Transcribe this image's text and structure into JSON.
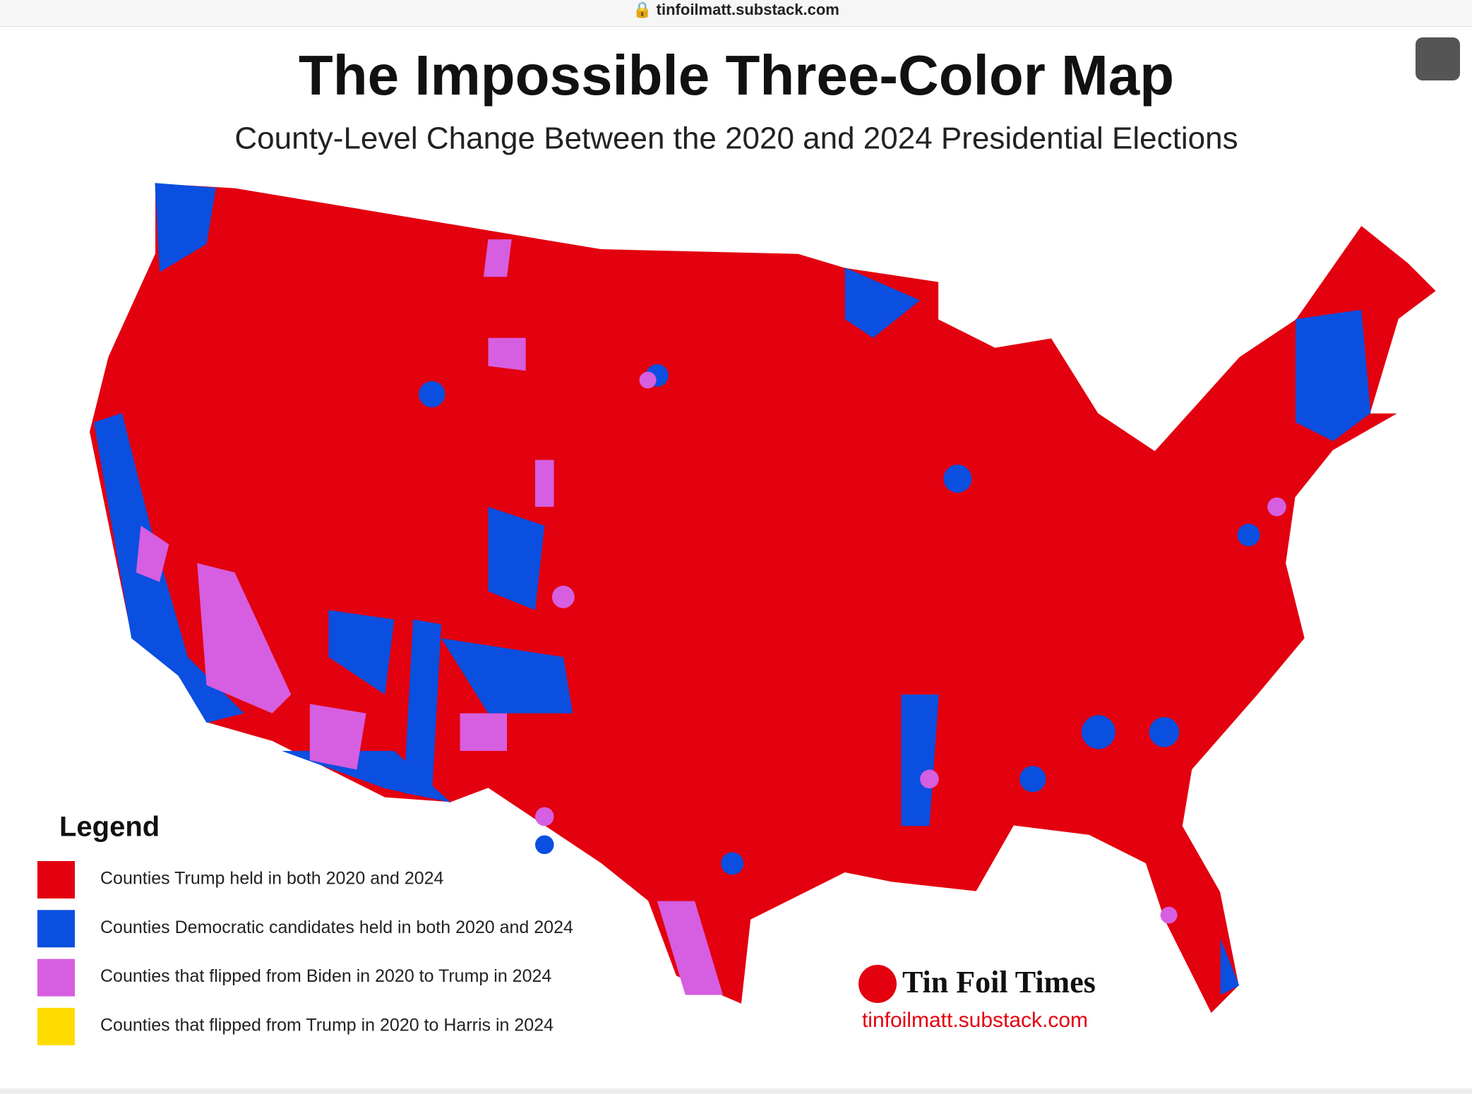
{
  "browser": {
    "url": "tinfoilmatt.substack.com"
  },
  "header": {
    "title": "The Impossible Three-Color Map",
    "subtitle": "County-Level Change Between the 2020 and 2024 Presidential Elections"
  },
  "legend": {
    "title": "Legend",
    "items": [
      {
        "label": "Counties Trump held in both 2020 and 2024",
        "color": "#e3000f"
      },
      {
        "label": "Counties Democratic candidates held in both 2020 and 2024",
        "color": "#0a4fe0"
      },
      {
        "label": "Counties that flipped from Biden in 2020 to Trump in 2024",
        "color": "#d65ee0"
      },
      {
        "label": "Counties that flipped from Trump in 2020 to Harris in 2024",
        "color": "#ffdc00"
      }
    ]
  },
  "branding": {
    "name": "Tin Foil Times",
    "url": "tinfoilmatt.substack.com"
  }
}
